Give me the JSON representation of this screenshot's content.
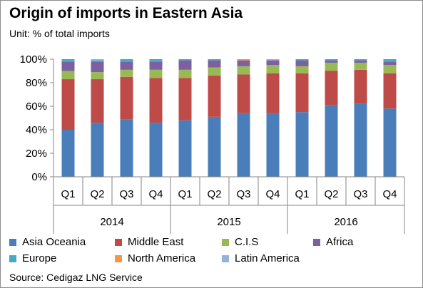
{
  "chart_data": {
    "type": "bar",
    "stacked": true,
    "title": "Origin of imports in Eastern Asia",
    "subtitle": "Unit: % of total imports",
    "source": "Source: Cedigaz LNG Service",
    "categories": [
      "Q1",
      "Q2",
      "Q3",
      "Q4",
      "Q1",
      "Q2",
      "Q3",
      "Q4",
      "Q1",
      "Q2",
      "Q3",
      "Q4"
    ],
    "groups": [
      {
        "label": "2014",
        "count": 4
      },
      {
        "label": "2015",
        "count": 4
      },
      {
        "label": "2016",
        "count": 4
      }
    ],
    "ylim": [
      0,
      100
    ],
    "yticks": [
      "0%",
      "20%",
      "40%",
      "60%",
      "80%",
      "100%"
    ],
    "grid": false,
    "legend_position": "bottom",
    "series": [
      {
        "name": "Asia Oceania",
        "color": "#4a7ebb",
        "values": [
          40,
          46,
          49,
          46,
          48,
          51,
          54,
          54,
          55,
          61,
          62,
          58
        ]
      },
      {
        "name": "Middle East",
        "color": "#be4b48",
        "values": [
          43,
          37,
          36,
          38,
          36,
          35,
          33,
          34,
          33,
          29,
          29,
          30
        ]
      },
      {
        "name": "C.I.S",
        "color": "#98b954",
        "values": [
          7,
          6,
          6,
          7,
          7,
          7,
          7,
          7,
          6,
          7,
          6,
          7
        ]
      },
      {
        "name": "Africa",
        "color": "#7d60a0",
        "values": [
          8,
          9,
          7,
          7,
          8,
          6,
          5,
          4,
          5,
          2,
          2,
          3
        ]
      },
      {
        "name": "Europe",
        "color": "#46aac5",
        "values": [
          2,
          1,
          2,
          2,
          1,
          1,
          0,
          0,
          1,
          1,
          1,
          2
        ]
      },
      {
        "name": "North America",
        "color": "#f79646",
        "values": [
          0,
          0,
          0,
          0,
          0,
          0,
          1,
          0,
          0,
          0,
          0,
          0
        ]
      },
      {
        "name": "Latin America",
        "color": "#95b3d7",
        "values": [
          0,
          1,
          0,
          0,
          0,
          0,
          0,
          1,
          0,
          0,
          0,
          0
        ]
      }
    ]
  }
}
